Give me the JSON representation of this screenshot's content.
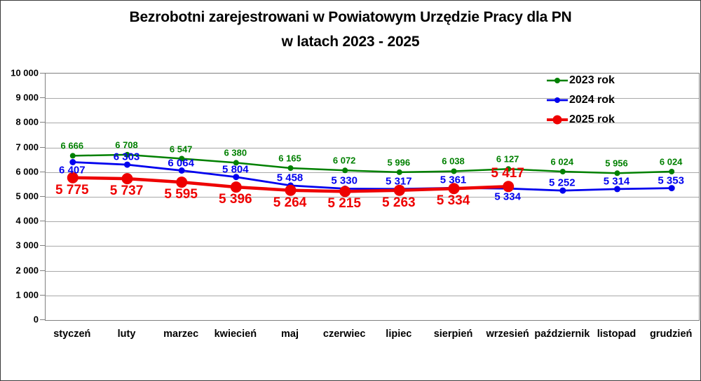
{
  "title": {
    "line1": "Bezrobotni zarejestrowani w Powiatowym Urzędzie Pracy dla PN",
    "line2": "w latach 2023 - 2025"
  },
  "chart_data": {
    "type": "line",
    "categories": [
      "styczeń",
      "luty",
      "marzec",
      "kwiecień",
      "maj",
      "czerwiec",
      "lipiec",
      "sierpień",
      "wrzesień",
      "październik",
      "listopad",
      "grudzień"
    ],
    "series": [
      {
        "name": "2023 rok",
        "color": "#008000",
        "values": [
          6666,
          6708,
          6547,
          6380,
          6165,
          6072,
          5996,
          6038,
          6127,
          6024,
          5956,
          6024
        ],
        "labels": [
          "6 666",
          "6 708",
          "6 547",
          "6 380",
          "6 165",
          "6 072",
          "5 996",
          "6 038",
          "6 127",
          "6 024",
          "5 956",
          "6 024"
        ],
        "label_side": "above",
        "label_side_overrides": {}
      },
      {
        "name": "2024 rok",
        "color": "#0000ee",
        "values": [
          6407,
          6303,
          6064,
          5804,
          5458,
          5330,
          5317,
          5361,
          5334,
          5252,
          5314,
          5353
        ],
        "labels": [
          "6 407",
          "6 303",
          "6 064",
          "5 804",
          "5 458",
          "5 330",
          "5 317",
          "5 361",
          "5 334",
          "5 252",
          "5 314",
          "5 353"
        ],
        "label_side": "above",
        "label_side_overrides": {
          "0": "below",
          "8": "below"
        }
      },
      {
        "name": "2025 rok",
        "color": "#ee0000",
        "values": [
          5775,
          5737,
          5595,
          5396,
          5264,
          5215,
          5263,
          5334,
          5417
        ],
        "labels": [
          "5 775",
          "5 737",
          "5 595",
          "5 396",
          "5 264",
          "5 215",
          "5 263",
          "5 334",
          "5 417"
        ],
        "label_side": "below",
        "label_side_overrides": {
          "8": "above"
        }
      }
    ],
    "xlabel": "",
    "ylabel": "",
    "ylim": [
      0,
      10000
    ],
    "ytick_step": 1000,
    "ytick_labels": [
      "0",
      "1 000",
      "2 000",
      "3 000",
      "4 000",
      "5 000",
      "6 000",
      "7 000",
      "8 000",
      "9 000",
      "10 000"
    ],
    "grid": true,
    "legend_position": "top-right"
  }
}
